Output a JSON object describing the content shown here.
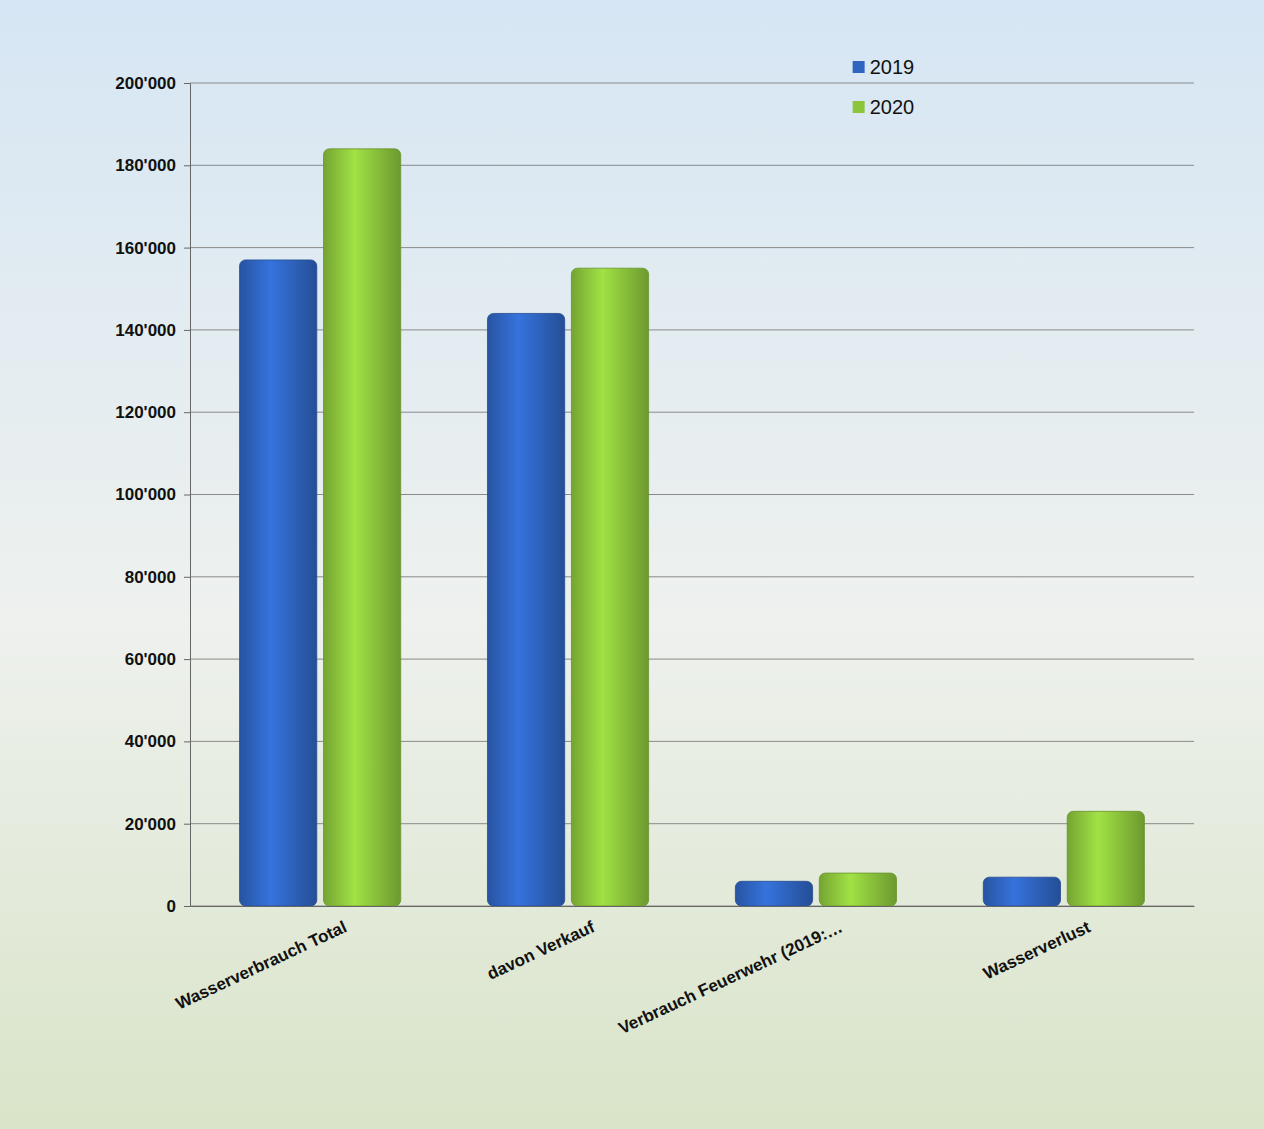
{
  "chart_data": {
    "type": "bar",
    "categories": [
      "Wasserverbrauch Total",
      "davon Verkauf",
      "Verbrauch Feuerwehr (2019:…",
      "Wasserverlust"
    ],
    "series": [
      {
        "name": "2019",
        "color": "#2f64c0",
        "values": [
          157000,
          144000,
          6000,
          7000
        ]
      },
      {
        "name": "2020",
        "color": "#8cc43c",
        "values": [
          184000,
          155000,
          8000,
          23000
        ]
      }
    ],
    "ylim": [
      0,
      200000
    ],
    "yticks": [
      0,
      {
        "value": 20000,
        "label": "20'000"
      },
      {
        "value": 40000,
        "label": "40'000"
      },
      {
        "value": 60000,
        "label": "60'000"
      },
      {
        "value": 80000,
        "label": "80'000"
      },
      {
        "value": 100000,
        "label": "100'000"
      },
      {
        "value": 120000,
        "label": "120'000"
      },
      {
        "value": 140000,
        "label": "140'000"
      },
      {
        "value": 160000,
        "label": "160'000"
      },
      {
        "value": 180000,
        "label": "180'000"
      },
      {
        "value": 200000,
        "label": "200'000"
      }
    ],
    "grid": true,
    "legend": "upper right"
  }
}
